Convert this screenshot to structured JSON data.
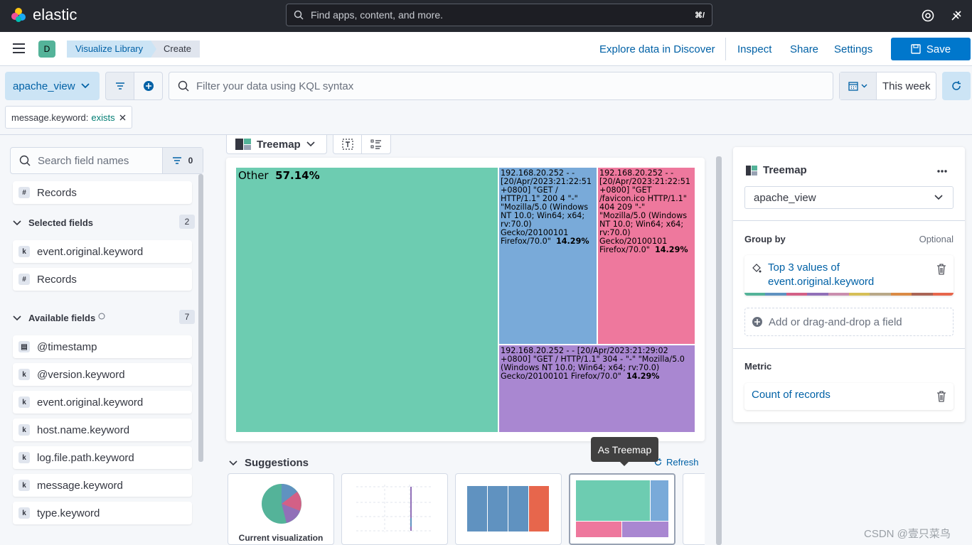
{
  "topbar": {
    "brand": "elastic",
    "search_placeholder": "Find apps, content, and more.",
    "shortcut": "⌘/"
  },
  "header": {
    "space_badge": "D",
    "breadcrumbs": [
      "Visualize Library",
      "Create"
    ],
    "links": [
      "Explore data in Discover",
      "Inspect",
      "Share",
      "Settings"
    ],
    "save_label": "Save"
  },
  "query": {
    "data_view": "apache_view",
    "kql_placeholder": "Filter your data using KQL syntax",
    "date_label": "This week",
    "filter_pill": {
      "field": "message.keyword:",
      "op": "exists"
    }
  },
  "fields_panel": {
    "search_placeholder": "Search field names",
    "filter_count": "0",
    "records_label": "Records",
    "selected": {
      "title": "Selected fields",
      "count": "2",
      "items": [
        {
          "type": "k",
          "name": "event.original.keyword"
        },
        {
          "type": "#",
          "name": "Records"
        }
      ]
    },
    "available": {
      "title": "Available fields",
      "count": "7",
      "items": [
        {
          "type": "cal",
          "name": "@timestamp"
        },
        {
          "type": "k",
          "name": "@version.keyword"
        },
        {
          "type": "k",
          "name": "event.original.keyword"
        },
        {
          "type": "k",
          "name": "host.name.keyword"
        },
        {
          "type": "k",
          "name": "log.file.path.keyword"
        },
        {
          "type": "k",
          "name": "message.keyword"
        },
        {
          "type": "k",
          "name": "type.keyword"
        }
      ]
    }
  },
  "workspace": {
    "chart_switch": "Treemap"
  },
  "chart_data": {
    "type": "treemap",
    "title": "",
    "slices": [
      {
        "label": "Other",
        "percent": "57.14%",
        "value": 57.14,
        "color": "#6dccb1"
      },
      {
        "label": "192.168.20.252 - - [20/Apr/2023:21:22:51 +0800] \"GET / HTTP/1.1\" 200 4 \"-\" \"Mozilla/5.0 (Windows NT 10.0; Win64; x64; rv:70.0) Gecko/20100101 Firefox/70.0\"",
        "percent": "14.29%",
        "value": 14.29,
        "color": "#79aad9"
      },
      {
        "label": "192.168.20.252 - - [20/Apr/2023:21:22:51 +0800] \"GET /favicon.ico HTTP/1.1\" 404 209 \"-\" \"Mozilla/5.0 (Windows NT 10.0; Win64; x64; rv:70.0) Gecko/20100101 Firefox/70.0\"",
        "percent": "14.29%",
        "value": 14.29,
        "color": "#ee789d"
      },
      {
        "label": "192.168.20.252 - - [20/Apr/2023:21:29:02 +0800] \"GET / HTTP/1.1\" 304 - \"-\" \"Mozilla/5.0 (Windows NT 10.0; Win64; x64; rv:70.0) Gecko/20100101 Firefox/70.0\"",
        "percent": "14.29%",
        "value": 14.29,
        "color": "#a987d1"
      }
    ]
  },
  "suggestions": {
    "title": "Suggestions",
    "refresh": "Refresh",
    "tooltip": "As Treemap",
    "cards": [
      "Current visualization"
    ]
  },
  "config_panel": {
    "title": "Treemap",
    "data_view": "apache_view",
    "group_by_label": "Group by",
    "optional": "Optional",
    "group_by_value": "Top 3 values of event.original.keyword",
    "palette": [
      "#54b399",
      "#6092c0",
      "#d36086",
      "#9170b8",
      "#ca8eae",
      "#d6bf57",
      "#b9a888",
      "#da8b45",
      "#aa6556",
      "#e7664c"
    ],
    "add_field": "Add or drag-and-drop a field",
    "metric_label": "Metric",
    "metric_value": "Count of records"
  },
  "watermark": "CSDN @壹只菜鸟"
}
